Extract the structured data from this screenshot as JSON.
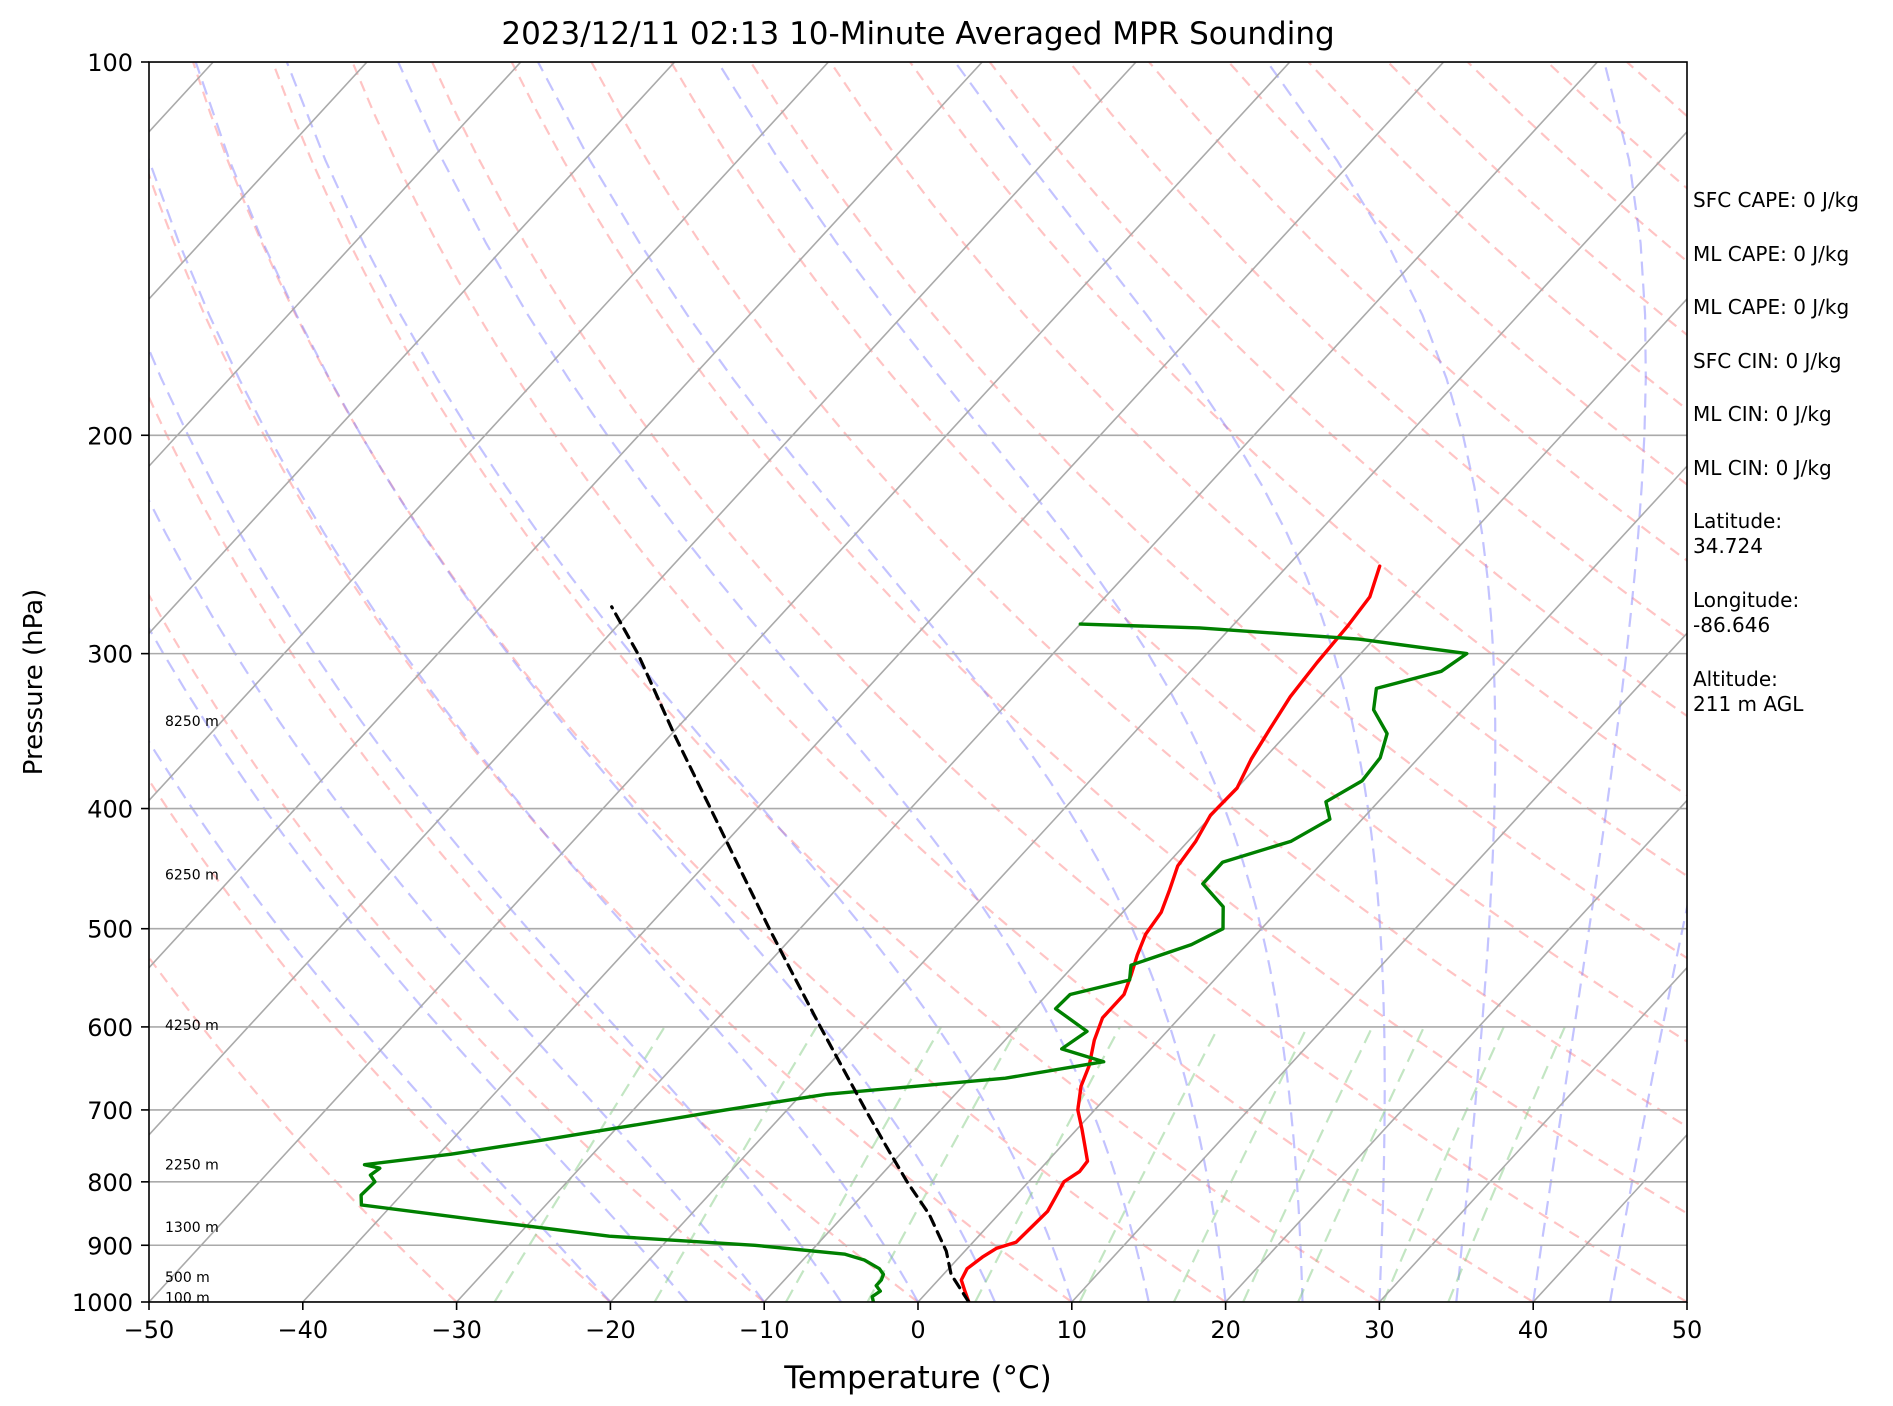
{
  "chart_data": {
    "type": "line",
    "title": "2023/12/11 02:13 10-Minute Averaged MPR Sounding",
    "xlabel": "Temperature (°C)",
    "ylabel": "Pressure (hPa)",
    "xlim": [
      -50,
      50
    ],
    "ylim": [
      1000,
      100
    ],
    "y_scale": "log",
    "x_ticks": [
      -50,
      -40,
      -30,
      -20,
      -10,
      0,
      10,
      20,
      30,
      40,
      50
    ],
    "x_tick_labels": [
      "−50",
      "−40",
      "−30",
      "−20",
      "−10",
      "0",
      "10",
      "20",
      "30",
      "40",
      "50"
    ],
    "y_ticks": [
      1000,
      900,
      800,
      700,
      600,
      500,
      400,
      300,
      200,
      100
    ],
    "y_tick_labels": [
      "1000",
      "900",
      "800",
      "700",
      "600",
      "500",
      "400",
      "300",
      "200",
      "100"
    ],
    "grid": true,
    "height_labels": [
      {
        "pressure": 992,
        "text": "100 m"
      },
      {
        "pressure": 955,
        "text": "500 m"
      },
      {
        "pressure": 870,
        "text": "1300 m"
      },
      {
        "pressure": 775,
        "text": "2250 m"
      },
      {
        "pressure": 598,
        "text": "4250 m"
      },
      {
        "pressure": 452,
        "text": "6250 m"
      },
      {
        "pressure": 340,
        "text": "8250 m"
      }
    ],
    "series": [
      {
        "role": "temperature",
        "color": "#ff0000",
        "points": [
          [
            1000,
            3.3
          ],
          [
            980,
            2.4
          ],
          [
            960,
            1.5
          ],
          [
            940,
            1.2
          ],
          [
            920,
            1.5
          ],
          [
            905,
            1.9
          ],
          [
            895,
            2.8
          ],
          [
            870,
            2.9
          ],
          [
            845,
            3.0
          ],
          [
            825,
            2.7
          ],
          [
            800,
            2.3
          ],
          [
            785,
            2.7
          ],
          [
            770,
            2.6
          ],
          [
            750,
            1.6
          ],
          [
            725,
            0.3
          ],
          [
            700,
            -1.1
          ],
          [
            670,
            -2.3
          ],
          [
            645,
            -3.0
          ],
          [
            615,
            -4.2
          ],
          [
            590,
            -5.0
          ],
          [
            565,
            -5.0
          ],
          [
            545,
            -5.7
          ],
          [
            525,
            -6.5
          ],
          [
            505,
            -7.2
          ],
          [
            485,
            -7.5
          ],
          [
            465,
            -8.3
          ],
          [
            445,
            -9.2
          ],
          [
            425,
            -9.5
          ],
          [
            405,
            -10.1
          ],
          [
            385,
            -10.0
          ],
          [
            365,
            -10.8
          ],
          [
            345,
            -11.4
          ],
          [
            325,
            -12.0
          ],
          [
            305,
            -12.3
          ],
          [
            285,
            -12.5
          ],
          [
            270,
            -12.8
          ],
          [
            255,
            -14.0
          ]
        ]
      },
      {
        "role": "dewpoint",
        "color": "#008000",
        "points": [
          [
            1000,
            -2.9
          ],
          [
            990,
            -3.3
          ],
          [
            980,
            -3.1
          ],
          [
            970,
            -3.7
          ],
          [
            960,
            -3.7
          ],
          [
            950,
            -3.9
          ],
          [
            940,
            -4.5
          ],
          [
            925,
            -6.0
          ],
          [
            915,
            -7.6
          ],
          [
            900,
            -14.0
          ],
          [
            885,
            -24.0
          ],
          [
            860,
            -33.0
          ],
          [
            835,
            -42.0
          ],
          [
            820,
            -42.6
          ],
          [
            800,
            -42.5
          ],
          [
            790,
            -43.2
          ],
          [
            780,
            -43.0
          ],
          [
            775,
            -44.2
          ],
          [
            760,
            -39.2
          ],
          [
            740,
            -34.0
          ],
          [
            720,
            -29.0
          ],
          [
            700,
            -24.0
          ],
          [
            680,
            -18.4
          ],
          [
            660,
            -7.7
          ],
          [
            640,
            -2.3
          ],
          [
            625,
            -5.8
          ],
          [
            605,
            -5.2
          ],
          [
            580,
            -8.6
          ],
          [
            565,
            -8.5
          ],
          [
            550,
            -5.5
          ],
          [
            535,
            -6.3
          ],
          [
            515,
            -3.6
          ],
          [
            500,
            -2.5
          ],
          [
            480,
            -3.8
          ],
          [
            460,
            -6.5
          ],
          [
            442,
            -6.5
          ],
          [
            425,
            -3.3
          ],
          [
            408,
            -2.1
          ],
          [
            395,
            -3.4
          ],
          [
            380,
            -2.3
          ],
          [
            364,
            -2.5
          ],
          [
            348,
            -3.5
          ],
          [
            333,
            -5.8
          ],
          [
            320,
            -6.9
          ],
          [
            310,
            -3.7
          ],
          [
            300,
            -3.1
          ],
          [
            292,
            -11.0
          ],
          [
            286,
            -22.0
          ],
          [
            284,
            -30.0
          ]
        ]
      },
      {
        "role": "parcel",
        "color": "#000000",
        "dashed": true,
        "points": [
          [
            1000,
            3.3
          ],
          [
            950,
            0.5
          ],
          [
            910,
            -1.2
          ],
          [
            850,
            -4.5
          ],
          [
            800,
            -7.9
          ],
          [
            750,
            -11.3
          ],
          [
            700,
            -14.9
          ],
          [
            650,
            -18.7
          ],
          [
            600,
            -22.8
          ],
          [
            550,
            -27.2
          ],
          [
            500,
            -32.0
          ],
          [
            450,
            -37.2
          ],
          [
            400,
            -43.0
          ],
          [
            350,
            -49.6
          ],
          [
            300,
            -57.0
          ],
          [
            275,
            -61.5
          ]
        ]
      }
    ],
    "stats": [
      "SFC CAPE: 0 J/kg",
      "ML CAPE: 0 J/kg",
      "ML CAPE: 0 J/kg",
      "SFC CIN: 0 J/kg",
      "ML CIN: 0 J/kg",
      "ML CIN: 0 J/kg",
      "Latitude:\n34.724",
      "Longitude:\n-86.646",
      "Altitude:\n211 m AGL"
    ]
  }
}
